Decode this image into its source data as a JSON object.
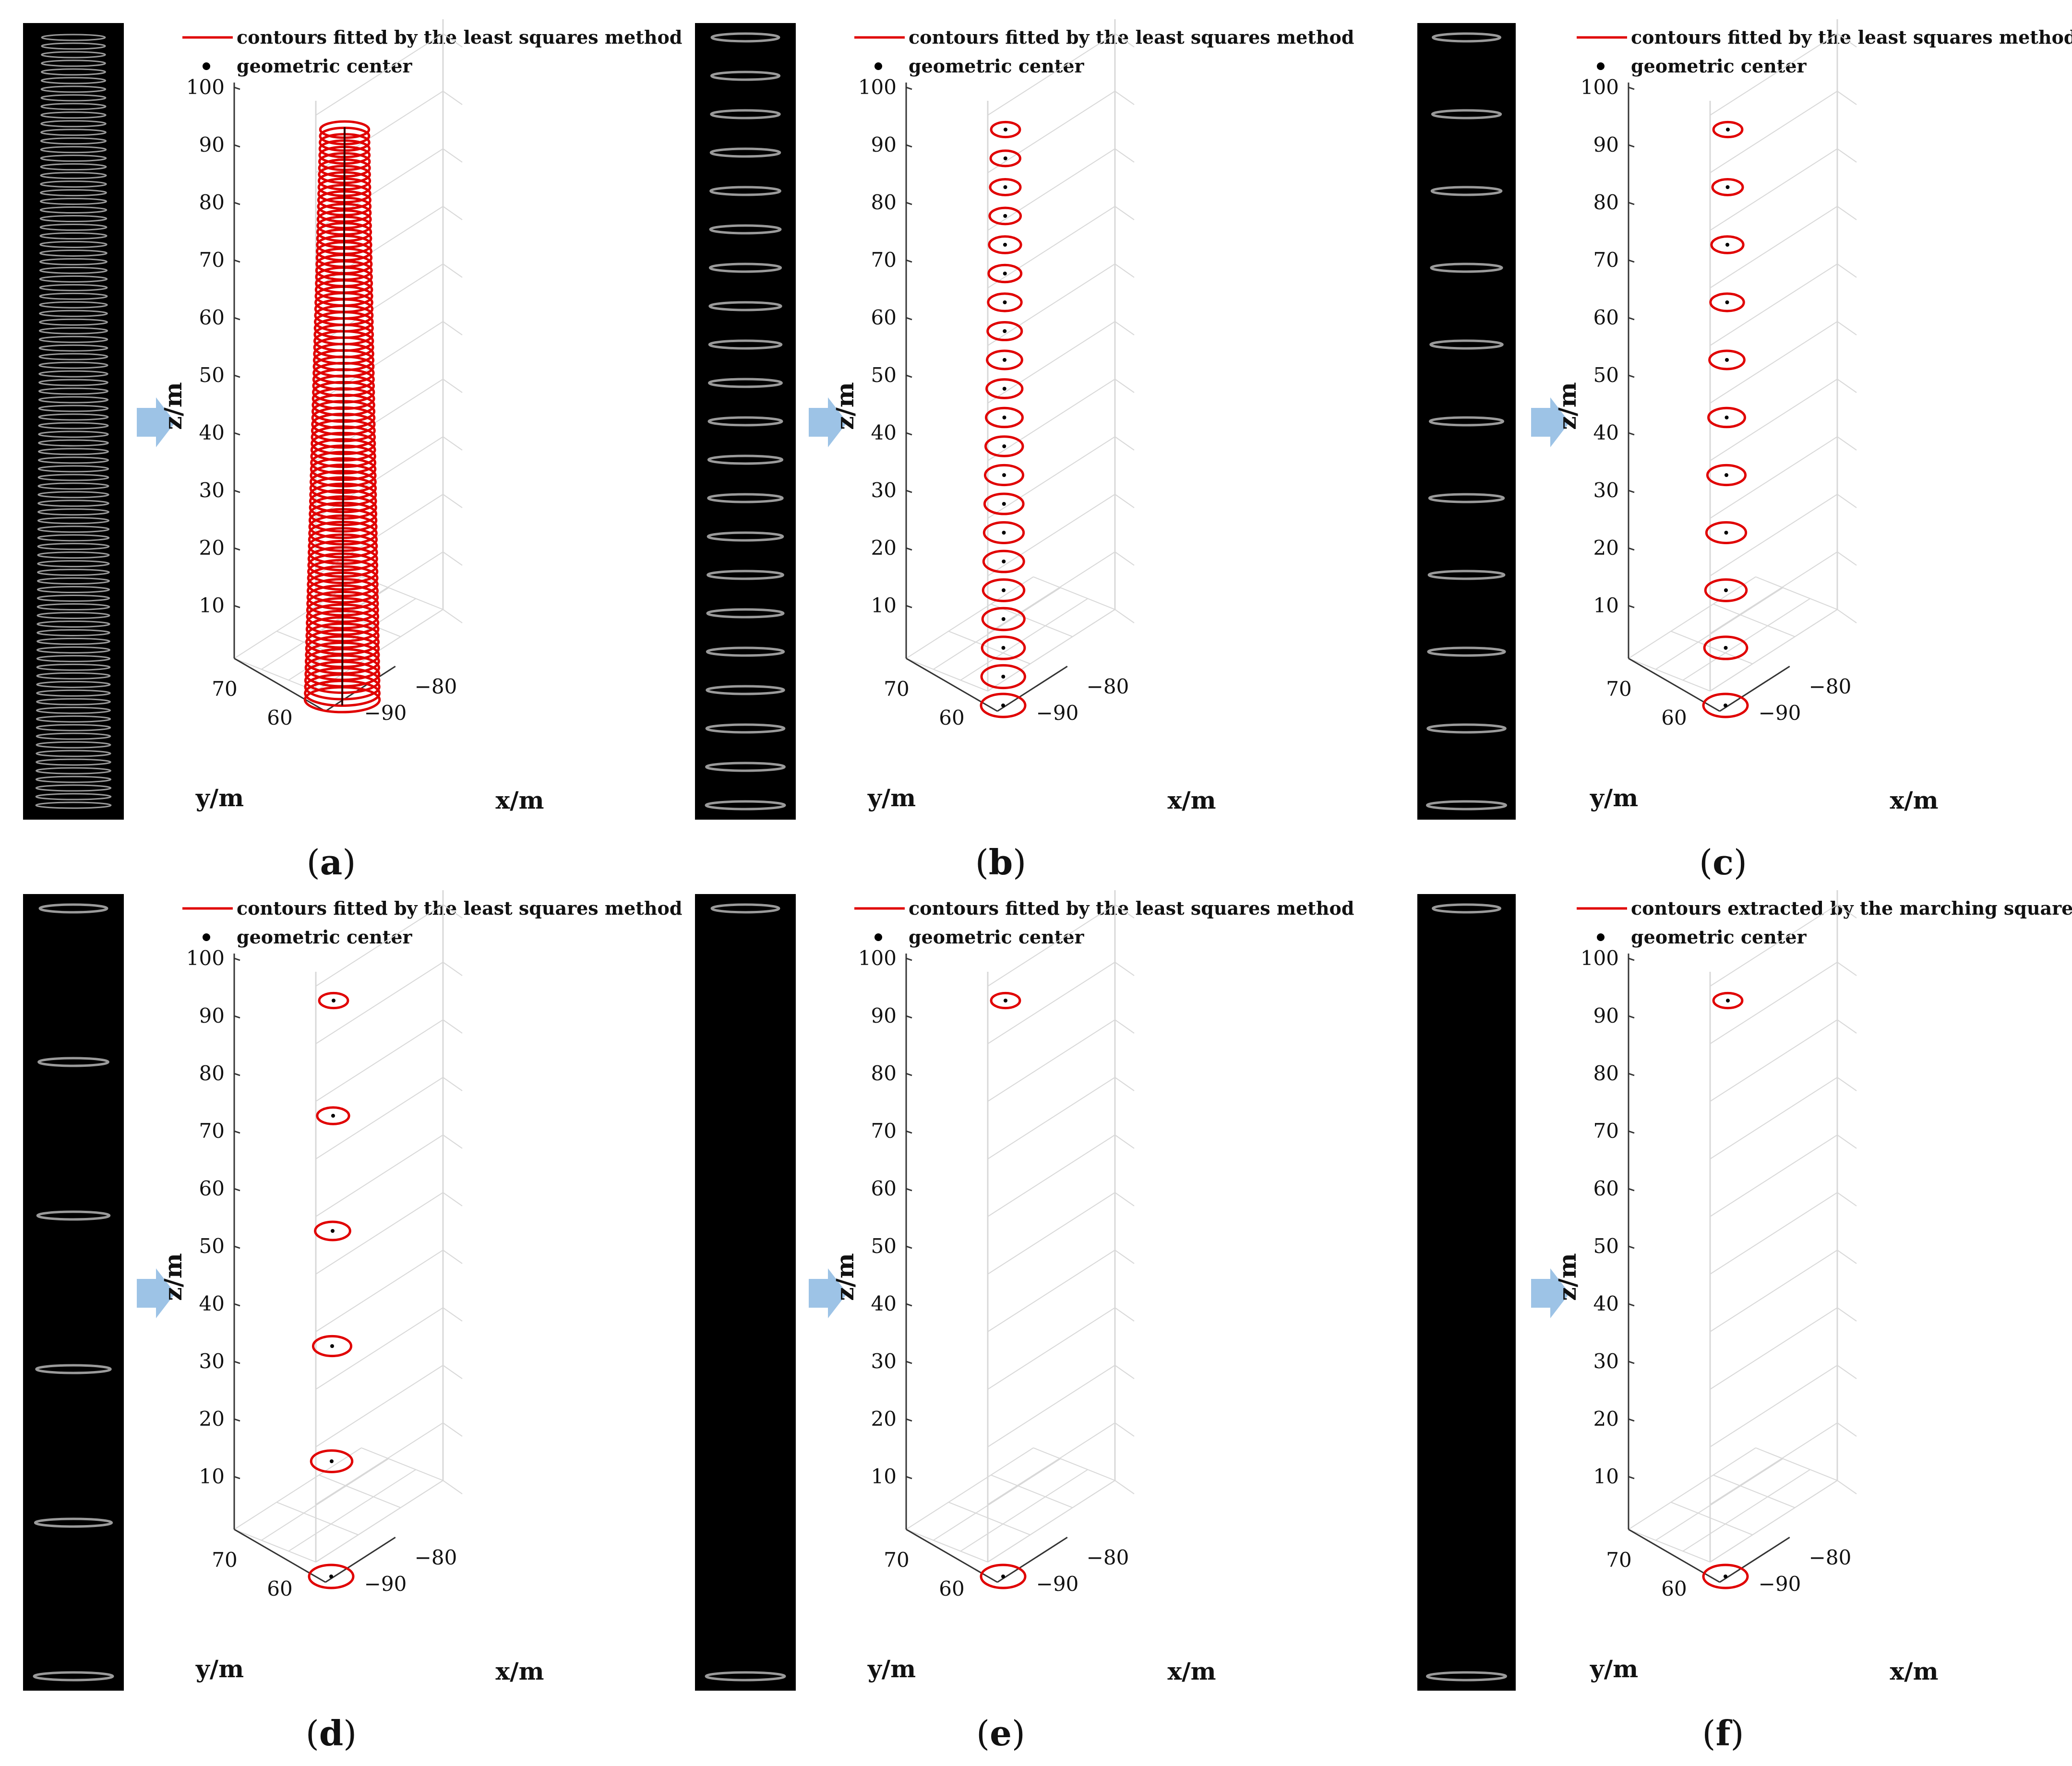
{
  "figure": {
    "panels": [
      {
        "id": "a",
        "caption": "a",
        "legend_line": "contours fitted by the least squares method",
        "legend_dot": "geometric center",
        "rings": 90,
        "thumb_rings": 90
      },
      {
        "id": "b",
        "caption": "b",
        "legend_line": "contours fitted by the least squares method",
        "legend_dot": "geometric center",
        "rings": 21,
        "thumb_rings": 21
      },
      {
        "id": "c",
        "caption": "c",
        "legend_line": "contours fitted by the least squares method",
        "legend_dot": "geometric center",
        "rings": 11,
        "thumb_rings": 11
      },
      {
        "id": "d",
        "caption": "d",
        "legend_line": "contours fitted by the least squares method",
        "legend_dot": "geometric center",
        "rings": 6,
        "thumb_rings": 6
      },
      {
        "id": "e",
        "caption": "e",
        "legend_line": "contours fitted by the least squares method",
        "legend_dot": "geometric center",
        "rings": 2,
        "thumb_rings": 2
      },
      {
        "id": "f",
        "caption": "f",
        "legend_line": "contours extracted by the marching square algorithm",
        "legend_dot": "geometric center",
        "rings": 2,
        "thumb_rings": 2
      }
    ],
    "axes": {
      "z_label": "z/m",
      "y_label": "y/m",
      "x_label": "x/m",
      "z_ticks": [
        "10",
        "20",
        "30",
        "40",
        "50",
        "60",
        "70",
        "80",
        "90",
        "100"
      ],
      "y_ticks": [
        "70",
        "60"
      ],
      "x_ticks": [
        "−80",
        "−90"
      ]
    },
    "colors": {
      "contour": "#e00000",
      "center": "#000000",
      "arrow": "#9dc3e6",
      "grid": "#d8d8d8",
      "thumb_bg": "#000000",
      "thumb_ring": "#9a9a9a"
    }
  },
  "chart_data": [
    {
      "type": "scatter",
      "panel": "a",
      "zlabel": "z/m",
      "xlabel": "x/m",
      "ylabel": "y/m",
      "zlim": [
        0,
        100
      ],
      "series": [
        {
          "name": "contours fitted by the least squares method",
          "z_values": "90 rings from 1 to 100"
        },
        {
          "name": "geometric center"
        }
      ]
    },
    {
      "type": "scatter",
      "panel": "b",
      "zlabel": "z/m",
      "xlabel": "x/m",
      "ylabel": "y/m",
      "zlim": [
        0,
        100
      ],
      "z": [
        0,
        5,
        10,
        15,
        20,
        25,
        30,
        35,
        40,
        45,
        50,
        55,
        60,
        65,
        70,
        75,
        80,
        85,
        90,
        95,
        100
      ]
    },
    {
      "type": "scatter",
      "panel": "c",
      "zlabel": "z/m",
      "xlabel": "x/m",
      "ylabel": "y/m",
      "zlim": [
        0,
        100
      ],
      "z": [
        0,
        10,
        20,
        30,
        40,
        50,
        60,
        70,
        80,
        90,
        100
      ]
    },
    {
      "type": "scatter",
      "panel": "d",
      "zlabel": "z/m",
      "xlabel": "x/m",
      "ylabel": "y/m",
      "zlim": [
        0,
        100
      ],
      "z": [
        0,
        20,
        40,
        60,
        80,
        100
      ]
    },
    {
      "type": "scatter",
      "panel": "e",
      "zlabel": "z/m",
      "xlabel": "x/m",
      "ylabel": "y/m",
      "zlim": [
        0,
        100
      ],
      "z": [
        0,
        100
      ]
    },
    {
      "type": "scatter",
      "panel": "f",
      "zlabel": "z/m",
      "xlabel": "x/m",
      "ylabel": "y/m",
      "zlim": [
        0,
        100
      ],
      "z": [
        0,
        100
      ]
    }
  ]
}
